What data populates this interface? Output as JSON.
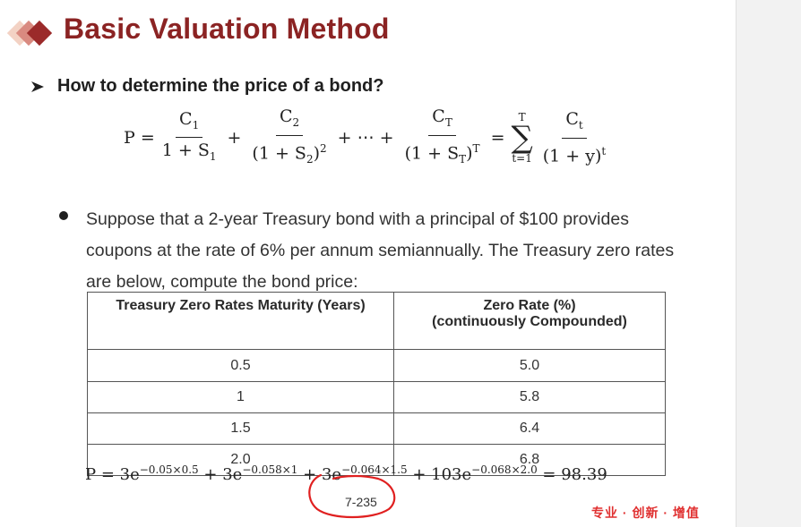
{
  "title": "Basic Valuation Method",
  "question": "How to determine the price of a bond?",
  "bullet_text": "Suppose that a 2-year Treasury bond with a principal of $100 provides coupons at the rate of 6% per annum semiannually. The Treasury zero rates are below, compute the bond price:",
  "table": {
    "headers": [
      "Treasury Zero Rates Maturity (Years)",
      "Zero Rate (%) (continuously Compounded)"
    ],
    "header2_line1": "Zero Rate (%)",
    "header2_line2": "(continuously Compounded)",
    "rows": [
      {
        "maturity": "0.5",
        "rate": "5.0"
      },
      {
        "maturity": "1",
        "rate": "5.8"
      },
      {
        "maturity": "1.5",
        "rate": "6.4"
      },
      {
        "maturity": "2.0",
        "rate": "6.8"
      }
    ]
  },
  "result_formula": "P = 3e^{-0.05×0.5} + 3e^{-0.058×1} + 3e^{-0.064×1.5} + 103e^{-0.068×2.0} = 98.39",
  "result_value": "98.39",
  "page_number": "7-235",
  "footer_tag": "专业 · 创新 · 增值",
  "colors": {
    "title": "#8b2323",
    "accent_circle": "#e02020",
    "footer": "#e03030"
  }
}
